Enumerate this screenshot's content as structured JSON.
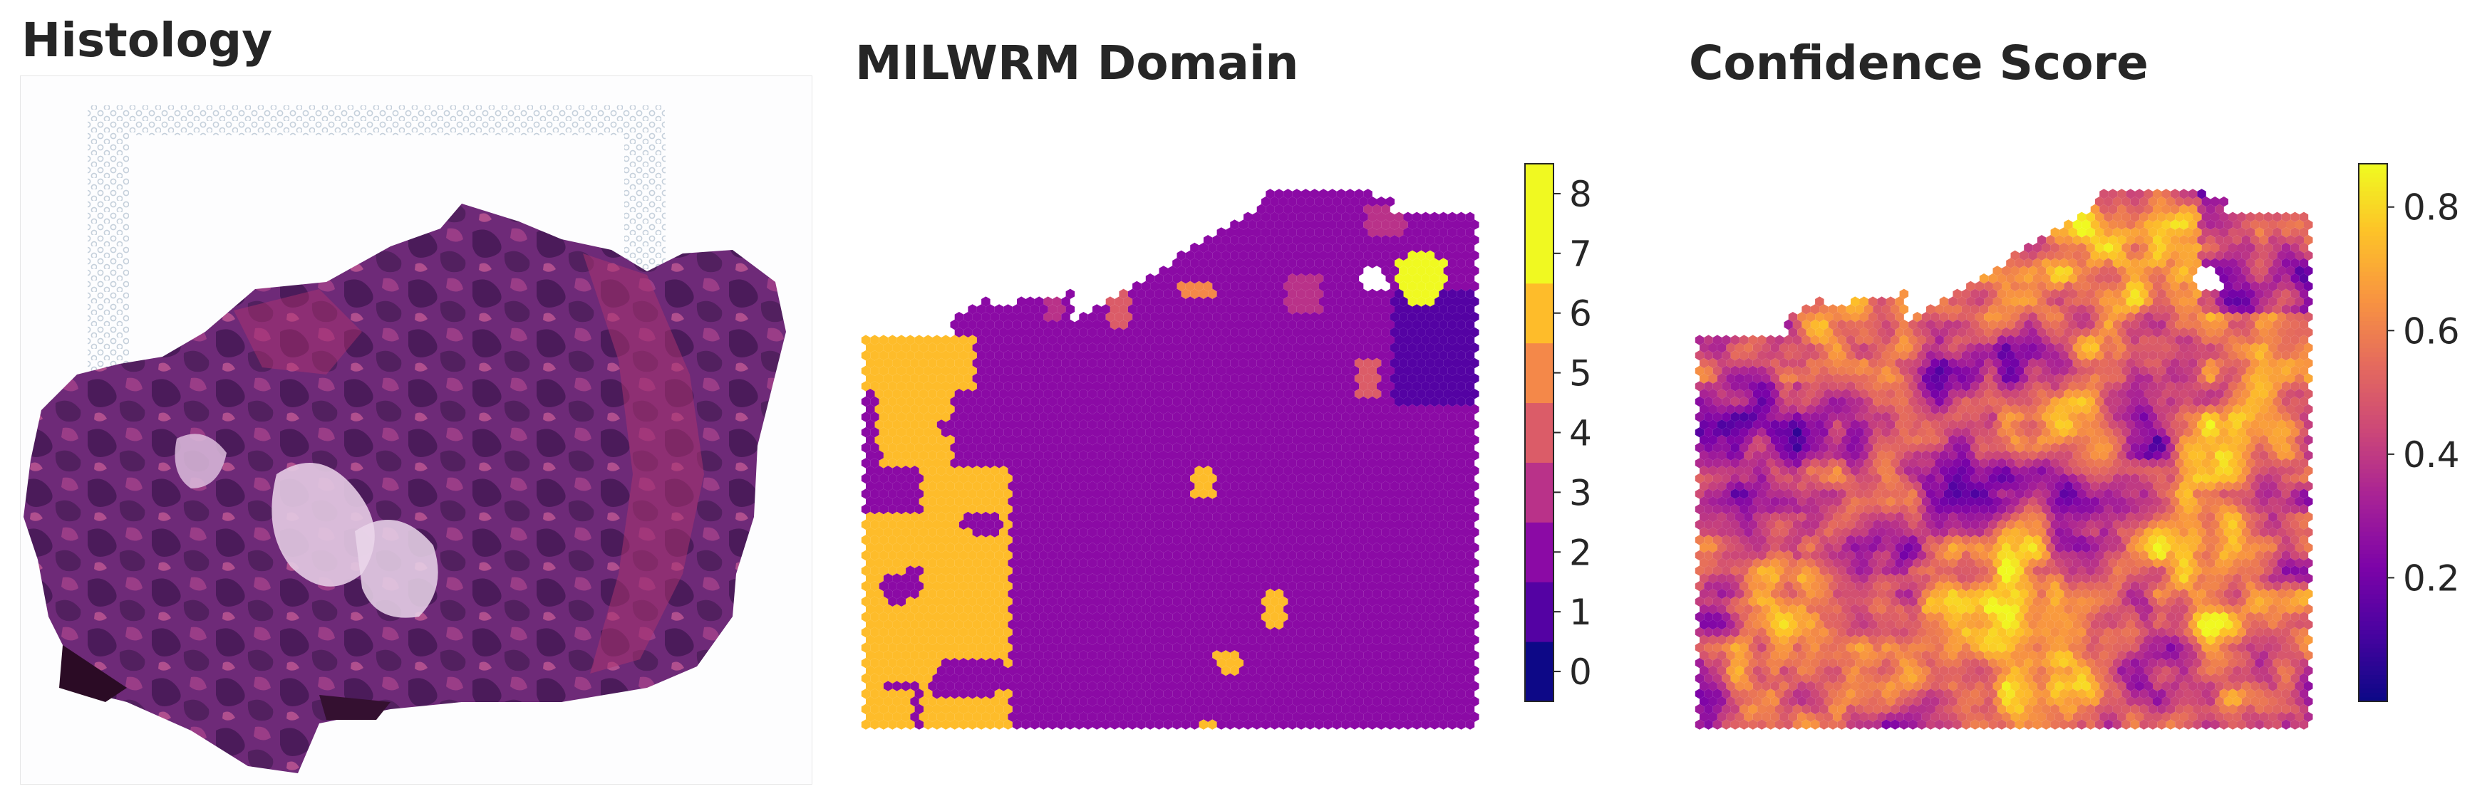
{
  "panels": {
    "histology": {
      "title": "Histology"
    },
    "domain": {
      "title": "MILWRM Domain"
    },
    "confidence": {
      "title": "Confidence Score"
    }
  },
  "chart_data": [
    {
      "type": "image",
      "title": "Histology",
      "content": "H&E-stained tissue section on a spatial transcriptomics capture area",
      "colors": {
        "tissue_dark": "#4a1d5c",
        "tissue_mid": "#7b2f7e",
        "stroma": "#b3336f",
        "lumen": "#e6cde6",
        "fiducial": "#c7d3de"
      }
    },
    {
      "type": "heatmap",
      "title": "MILWRM Domain",
      "layout": "hexagonal spot grid",
      "colormap": "plasma (discrete, 9 levels)",
      "colorbar": {
        "ticks": [
          "0",
          "1",
          "2",
          "3",
          "4",
          "5",
          "6",
          "7",
          "8"
        ],
        "colors": [
          "#0d0887",
          "#5402a3",
          "#8b0aa5",
          "#b93289",
          "#db5c68",
          "#f48849",
          "#febc2a",
          "#f0f921",
          "#f0f921"
        ],
        "range": [
          -0.5,
          8.5
        ]
      },
      "dominant_domains": [
        2,
        6
      ],
      "minor_domains": [
        0,
        1,
        3,
        4,
        5,
        8
      ]
    },
    {
      "type": "heatmap",
      "title": "Confidence Score",
      "layout": "hexagonal spot grid",
      "colormap": "plasma (continuous)",
      "colorbar": {
        "ticks": [
          "0.2",
          "0.4",
          "0.6",
          "0.8"
        ],
        "tick_values": [
          0.2,
          0.4,
          0.6,
          0.8
        ],
        "range": [
          0.0,
          0.87
        ]
      }
    }
  ]
}
